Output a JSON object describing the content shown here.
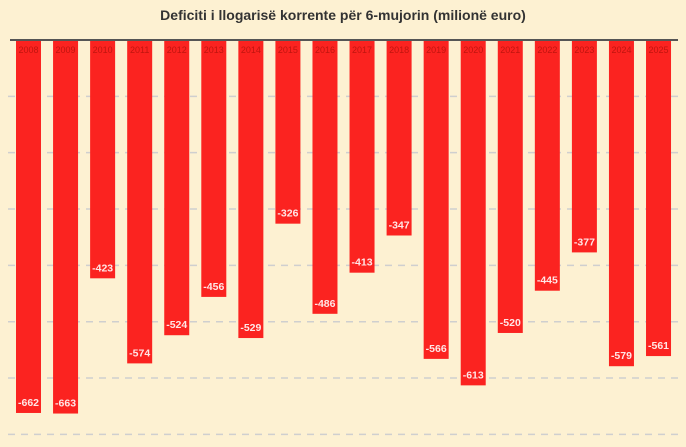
{
  "chart_data": {
    "type": "bar",
    "title": "Deficiti i llogarisë korrente për 6-mujorin (milionë euro)",
    "xlabel": "",
    "ylabel": "",
    "categories": [
      "2008",
      "2009",
      "2010",
      "2011",
      "2012",
      "2013",
      "2014",
      "2015",
      "2016",
      "2017",
      "2018",
      "2019",
      "2020",
      "2021",
      "2022",
      "2023",
      "2024",
      "2025"
    ],
    "values": [
      -662,
      -663,
      -423,
      -574,
      -524,
      -456,
      -529,
      -326,
      -486,
      -413,
      -347,
      -566,
      -613,
      -520,
      -445,
      -377,
      -579,
      -561
    ],
    "value_labels": [
      "-662",
      "-663",
      "-423",
      "-574",
      "-524",
      "-456",
      "-529",
      "-326",
      "-486",
      "-413",
      "-347",
      "-566",
      "-613",
      "-520",
      "-445",
      "-377",
      "-579",
      "-561"
    ],
    "ylim": [
      -700,
      0
    ],
    "gridlines": [
      -100,
      -200,
      -300,
      -400,
      -500,
      -600,
      -700
    ],
    "grid": true,
    "legend": "none",
    "colors": {
      "bar": "#fb2320",
      "background": "#fdf1d2",
      "grid": "#cfcfcf",
      "axis": "#555555",
      "label": "#ffe6e6",
      "tick": "#c0150f"
    }
  }
}
